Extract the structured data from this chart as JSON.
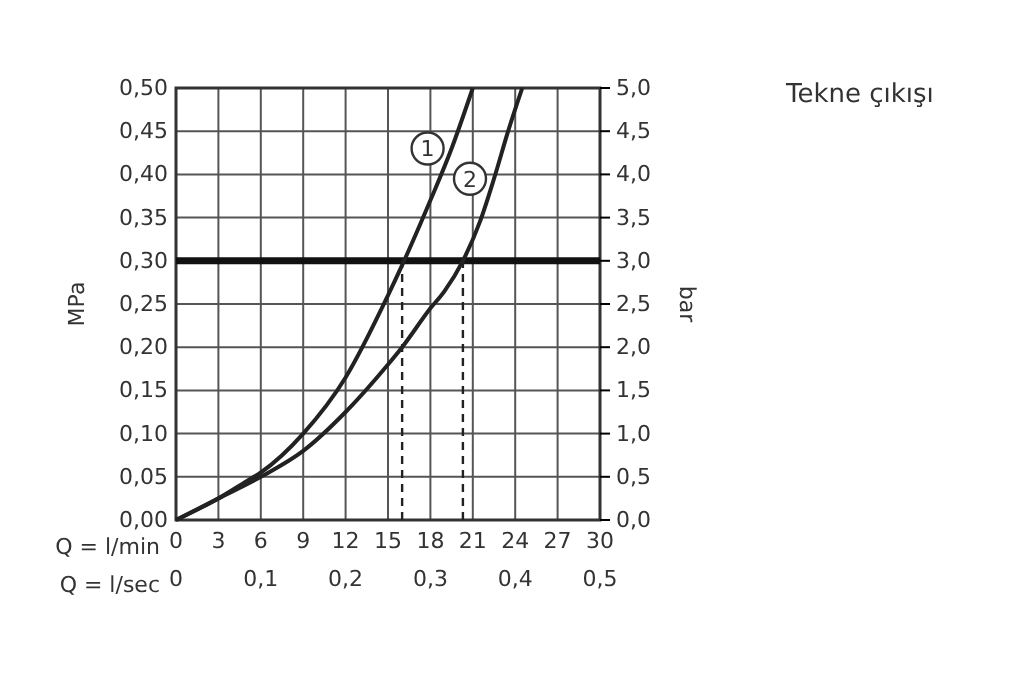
{
  "chart_data": {
    "type": "line",
    "title": "Tekne çıkışı",
    "xlabel": "Q = l/min",
    "x2label": "Q = l/sec",
    "ylabel": "MPa",
    "y2label": "bar",
    "xlim": [
      0,
      30
    ],
    "xticks": [
      0,
      3,
      6,
      9,
      12,
      15,
      18,
      21,
      24,
      27,
      30
    ],
    "x2lim": [
      0,
      0.5
    ],
    "x2ticks": [
      {
        "value": 0,
        "label": "0"
      },
      {
        "value": 0.1,
        "label": "0,1"
      },
      {
        "value": 0.2,
        "label": "0,2"
      },
      {
        "value": 0.3,
        "label": "0,3"
      },
      {
        "value": 0.4,
        "label": "0,4"
      },
      {
        "value": 0.5,
        "label": "0,5"
      }
    ],
    "ylim": [
      0,
      0.5
    ],
    "yticks": [
      {
        "value": 0,
        "label": "0,00"
      },
      {
        "value": 0.05,
        "label": "0,05"
      },
      {
        "value": 0.1,
        "label": "0,10"
      },
      {
        "value": 0.15,
        "label": "0,15"
      },
      {
        "value": 0.2,
        "label": "0,20"
      },
      {
        "value": 0.25,
        "label": "0,25"
      },
      {
        "value": 0.3,
        "label": "0,30"
      },
      {
        "value": 0.35,
        "label": "0,35"
      },
      {
        "value": 0.4,
        "label": "0,40"
      },
      {
        "value": 0.45,
        "label": "0,45"
      },
      {
        "value": 0.5,
        "label": "0,50"
      }
    ],
    "y2lim": [
      0,
      5
    ],
    "y2ticks": [
      {
        "value": 0,
        "label": "0,0"
      },
      {
        "value": 0.5,
        "label": "0,5"
      },
      {
        "value": 1,
        "label": "1,0"
      },
      {
        "value": 1.5,
        "label": "1,5"
      },
      {
        "value": 2,
        "label": "2,0"
      },
      {
        "value": 2.5,
        "label": "2,5"
      },
      {
        "value": 3,
        "label": "3,0"
      },
      {
        "value": 3.5,
        "label": "3,5"
      },
      {
        "value": 4,
        "label": "4,0"
      },
      {
        "value": 4.5,
        "label": "4,5"
      },
      {
        "value": 5,
        "label": "5,0"
      }
    ],
    "grid": true,
    "marker": "none",
    "line_style": "solid",
    "series": [
      {
        "name": "1",
        "color": "#222222",
        "x": [
          0,
          3,
          5,
          6,
          9,
          12,
          15,
          16,
          18,
          19.5,
          21
        ],
        "values": [
          0,
          0.025,
          0.045,
          0.055,
          0.1,
          0.165,
          0.26,
          0.295,
          0.37,
          0.43,
          0.5
        ]
      },
      {
        "name": "2",
        "color": "#222222",
        "x": [
          0,
          3,
          6,
          9,
          12,
          15,
          16,
          18,
          19,
          20.3,
          21.5,
          22.5,
          23.5,
          24.5
        ],
        "values": [
          0,
          0.025,
          0.05,
          0.08,
          0.125,
          0.18,
          0.2,
          0.245,
          0.265,
          0.3,
          0.345,
          0.395,
          0.45,
          0.5
        ]
      }
    ],
    "ref_lines": [
      {
        "axis": "y",
        "value": 0.3,
        "color": "#111111",
        "line_style": "solid"
      },
      {
        "axis": "x",
        "value": 16,
        "color": "#222222",
        "line_style": "dashed"
      },
      {
        "axis": "x",
        "value": 20.3,
        "color": "#222222",
        "line_style": "dashed"
      }
    ]
  }
}
